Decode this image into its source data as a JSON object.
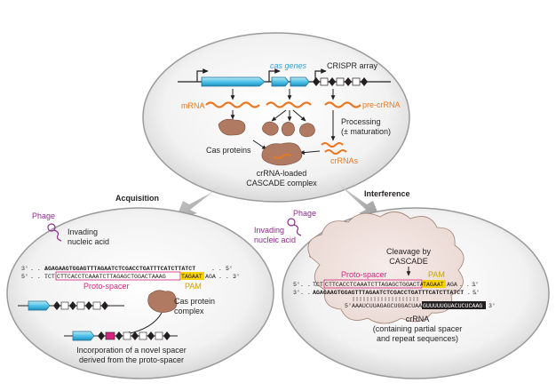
{
  "top": {
    "cas_genes": "cas genes",
    "crispr_array": "CRISPR array",
    "mrna": "mRNA",
    "pre_crrna": "pre-crRNA",
    "processing": "Processing",
    "maturation": "(± maturation)",
    "cas_proteins": "Cas proteins",
    "crrnas": "crRNAs",
    "cascade_1": "crRNA-loaded",
    "cascade_2": "CASCADE complex"
  },
  "arrows": {
    "acquisition": "Acquisition",
    "interference": "Interference"
  },
  "left": {
    "phage": "Phage",
    "invading_1": "Invading",
    "invading_2": "nucleic acid",
    "seq3_prefix": "3'",
    "seq3": "AGAGAAGTGGAGTTTAGAATCTCGACCTGATTTCATCTTATCT",
    "seq3_suffix": "5'",
    "seq5_prefix": "5'",
    "seq5_pre": "TCT",
    "seq5_proto": "CTTCACCTCAAATCTTAGAGCTGGACTAAAG",
    "seq5_pam": "TAGAAT",
    "seq5_post": "AGA",
    "seq5_suffix": "3'",
    "proto_spacer": "Proto-spacer",
    "pam": "PAM",
    "cas_protein_1": "Cas protein",
    "cas_protein_2": "complex",
    "incorp_1": "Incorporation of a novel spacer",
    "incorp_2": "derived from the proto-spacer"
  },
  "right": {
    "phage": "Phage",
    "invading_1": "Invading",
    "invading_2": "nucleic acid",
    "cleavage_1": "Cleavage by",
    "cleavage_2": "CASCADE",
    "proto_spacer": "Proto-spacer",
    "pam": "PAM",
    "seq5_prefix": "5'",
    "seq5_pre": "TCT",
    "seq5_proto": "CTTCACCTCAAATCTTAGAGCTGGACTAAAG",
    "seq5_pam": "TAGAAT",
    "seq5_post": "AGA",
    "seq5_suffix": "3'",
    "seq3_prefix": "3'",
    "seq3": "AGAGAAGTGGAGTTTAGAATCTCGACCTGATTTCATCTTATCT",
    "seq3_suffix": "5'",
    "crrna_prefix": "5'",
    "crrna_spacer": "AAAUCUUAGAGCUGGACUAAA",
    "crrna_repeat": "GUUUUUGUACUCUCAAG",
    "crrna_suffix": "3'",
    "crrna_label": "crRNA",
    "crrna_desc_1": "(containing partial spacer",
    "crrna_desc_2": "and repeat sequences)"
  },
  "colors": {
    "orange": "#e87722",
    "purple": "#8e2d8e",
    "pink": "#d6247f",
    "gold": "#f5d200",
    "cyan": "#4fc3e8",
    "protein": "#b07a62",
    "bubble": "#f1e6e1"
  }
}
